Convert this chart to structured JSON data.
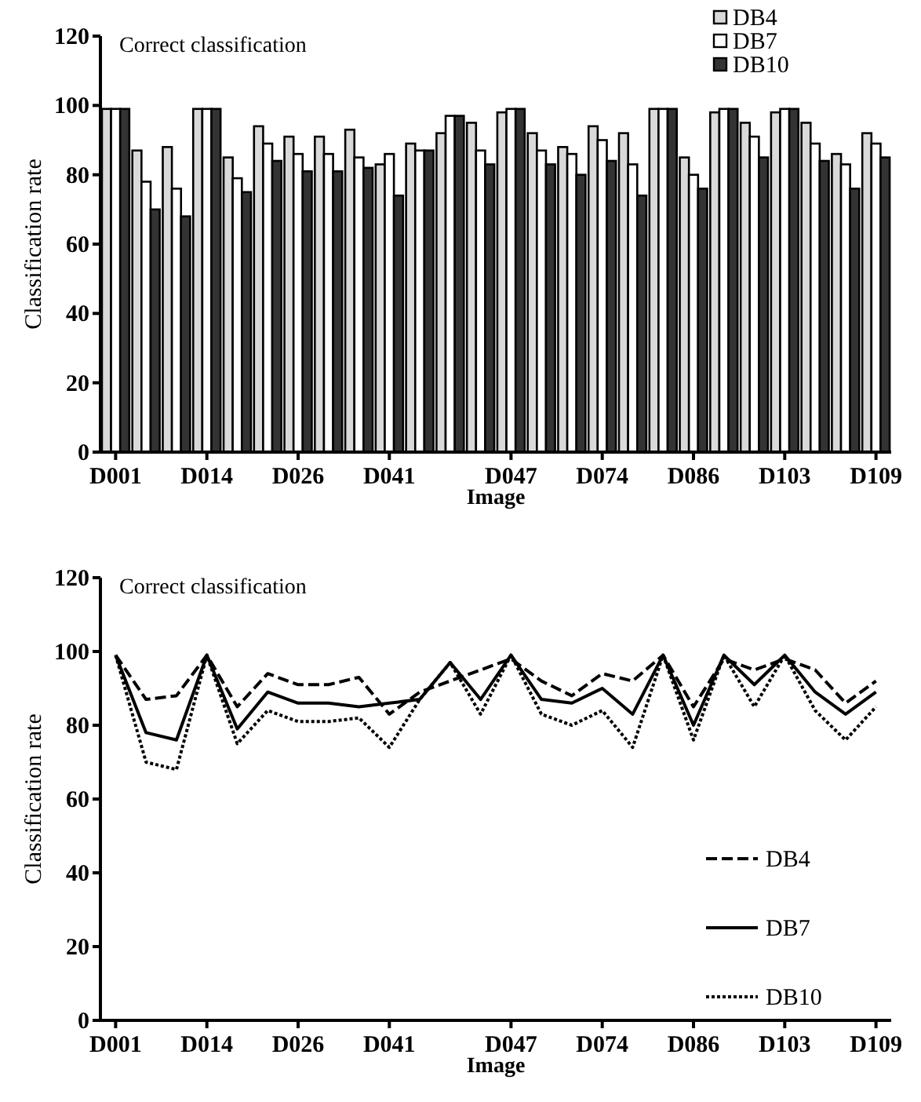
{
  "chart_data": [
    {
      "type": "bar",
      "title": "Correct classification",
      "xlabel": "Image",
      "ylabel": "Classification rate",
      "categories": [
        "D001",
        null,
        null,
        "D014",
        null,
        null,
        "D026",
        null,
        null,
        "D041",
        null,
        null,
        null,
        "D047",
        null,
        null,
        "D074",
        null,
        null,
        "D086",
        null,
        null,
        "D103",
        null,
        null,
        "D109"
      ],
      "ylim": [
        0,
        120
      ],
      "yticks": [
        0,
        20,
        40,
        60,
        80,
        100,
        120
      ],
      "legend": "top right",
      "series": [
        {
          "name": "DB4",
          "color": "#d9d9d9",
          "values": [
            99,
            87,
            88,
            99,
            85,
            94,
            91,
            91,
            93,
            83,
            89,
            92,
            95,
            98,
            92,
            88,
            94,
            92,
            99,
            85,
            98,
            95,
            98,
            95,
            86,
            92
          ]
        },
        {
          "name": "DB7",
          "color": "#ffffff",
          "values": [
            99,
            78,
            76,
            99,
            79,
            89,
            86,
            86,
            85,
            86,
            87,
            97,
            87,
            99,
            87,
            86,
            90,
            83,
            99,
            80,
            99,
            91,
            99,
            89,
            83,
            89
          ]
        },
        {
          "name": "DB10",
          "color": "#333333",
          "values": [
            99,
            70,
            68,
            99,
            75,
            84,
            81,
            81,
            82,
            74,
            87,
            97,
            83,
            99,
            83,
            80,
            84,
            74,
            99,
            76,
            99,
            85,
            99,
            84,
            76,
            85
          ]
        }
      ]
    },
    {
      "type": "line",
      "title": "Correct classification",
      "xlabel": "Image",
      "ylabel": "Classification rate",
      "categories": [
        "D001",
        null,
        null,
        "D014",
        null,
        null,
        "D026",
        null,
        null,
        "D041",
        null,
        null,
        null,
        "D047",
        null,
        null,
        "D074",
        null,
        null,
        "D086",
        null,
        null,
        "D103",
        null,
        null,
        "D109"
      ],
      "ylim": [
        0,
        120
      ],
      "yticks": [
        0,
        20,
        40,
        60,
        80,
        100,
        120
      ],
      "legend": "bottom right",
      "marker": "none",
      "series": [
        {
          "name": "DB4",
          "color": "#000000",
          "line_style": "dashed",
          "values": [
            99,
            87,
            88,
            99,
            85,
            94,
            91,
            91,
            93,
            83,
            89,
            92,
            95,
            98,
            92,
            88,
            94,
            92,
            99,
            85,
            98,
            95,
            98,
            95,
            86,
            92
          ]
        },
        {
          "name": "DB7",
          "color": "#000000",
          "line_style": "solid",
          "values": [
            99,
            78,
            76,
            99,
            79,
            89,
            86,
            86,
            85,
            86,
            87,
            97,
            87,
            99,
            87,
            86,
            90,
            83,
            99,
            80,
            99,
            91,
            99,
            89,
            83,
            89
          ]
        },
        {
          "name": "DB10",
          "color": "#000000",
          "line_style": "dotted",
          "values": [
            99,
            70,
            68,
            99,
            75,
            84,
            81,
            81,
            82,
            74,
            87,
            97,
            83,
            99,
            83,
            80,
            84,
            74,
            99,
            76,
            99,
            85,
            99,
            84,
            76,
            85
          ]
        }
      ]
    }
  ]
}
